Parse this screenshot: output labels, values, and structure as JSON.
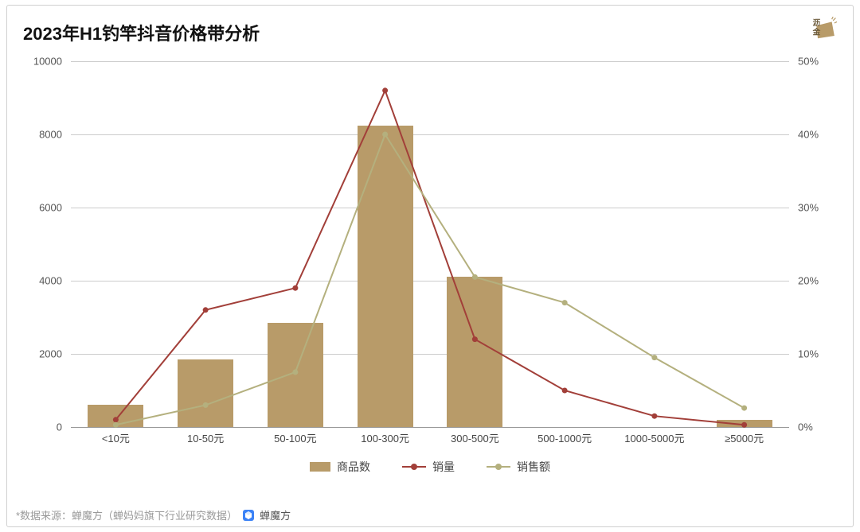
{
  "title": "2023年H1钓竿抖音价格带分析",
  "logo": {
    "text_top": "沥",
    "text_bottom": "金",
    "shape_color": "#b89b69",
    "text_color": "#6b5a3a"
  },
  "chart": {
    "type": "bar+line-dual-axis",
    "categories": [
      "<10元",
      "10-50元",
      "50-100元",
      "100-300元",
      "300-500元",
      "500-1000元",
      "1000-5000元",
      "≥5000元"
    ],
    "bars": {
      "label": "商品数",
      "values": [
        600,
        1850,
        2850,
        8250,
        4100,
        0,
        0,
        200
      ],
      "color": "#b89b69",
      "width_ratio": 0.62
    },
    "lines": [
      {
        "label": "销量",
        "values_pct": [
          1,
          16,
          19,
          46,
          12,
          5,
          1.5,
          0.3
        ],
        "color": "#a23f39",
        "marker": "circle",
        "marker_size": 7,
        "line_width": 2
      },
      {
        "label": "销售额",
        "values_pct": [
          0.3,
          3,
          7.5,
          40,
          20.5,
          17,
          9.5,
          2.6
        ],
        "color": "#b4b07e",
        "marker": "circle",
        "marker_size": 7,
        "line_width": 2
      }
    ],
    "y_left": {
      "min": 0,
      "max": 10000,
      "step": 2000,
      "ticks": [
        "0",
        "2000",
        "4000",
        "6000",
        "8000",
        "10000"
      ]
    },
    "y_right": {
      "min": 0,
      "max": 50,
      "step": 10,
      "ticks": [
        "0%",
        "10%",
        "20%",
        "30%",
        "40%",
        "50%"
      ]
    },
    "grid_color": "#cccccc",
    "axis_color": "#999999",
    "background_color": "#ffffff",
    "label_fontsize": 13,
    "title_fontsize": 22
  },
  "legend": {
    "items": [
      "商品数",
      "销量",
      "销售额"
    ]
  },
  "footer": {
    "text": "*数据来源：蝉魔方（蝉妈妈旗下行业研究数据）",
    "brand": "蝉魔方",
    "icon_color": "#3b82f6"
  }
}
